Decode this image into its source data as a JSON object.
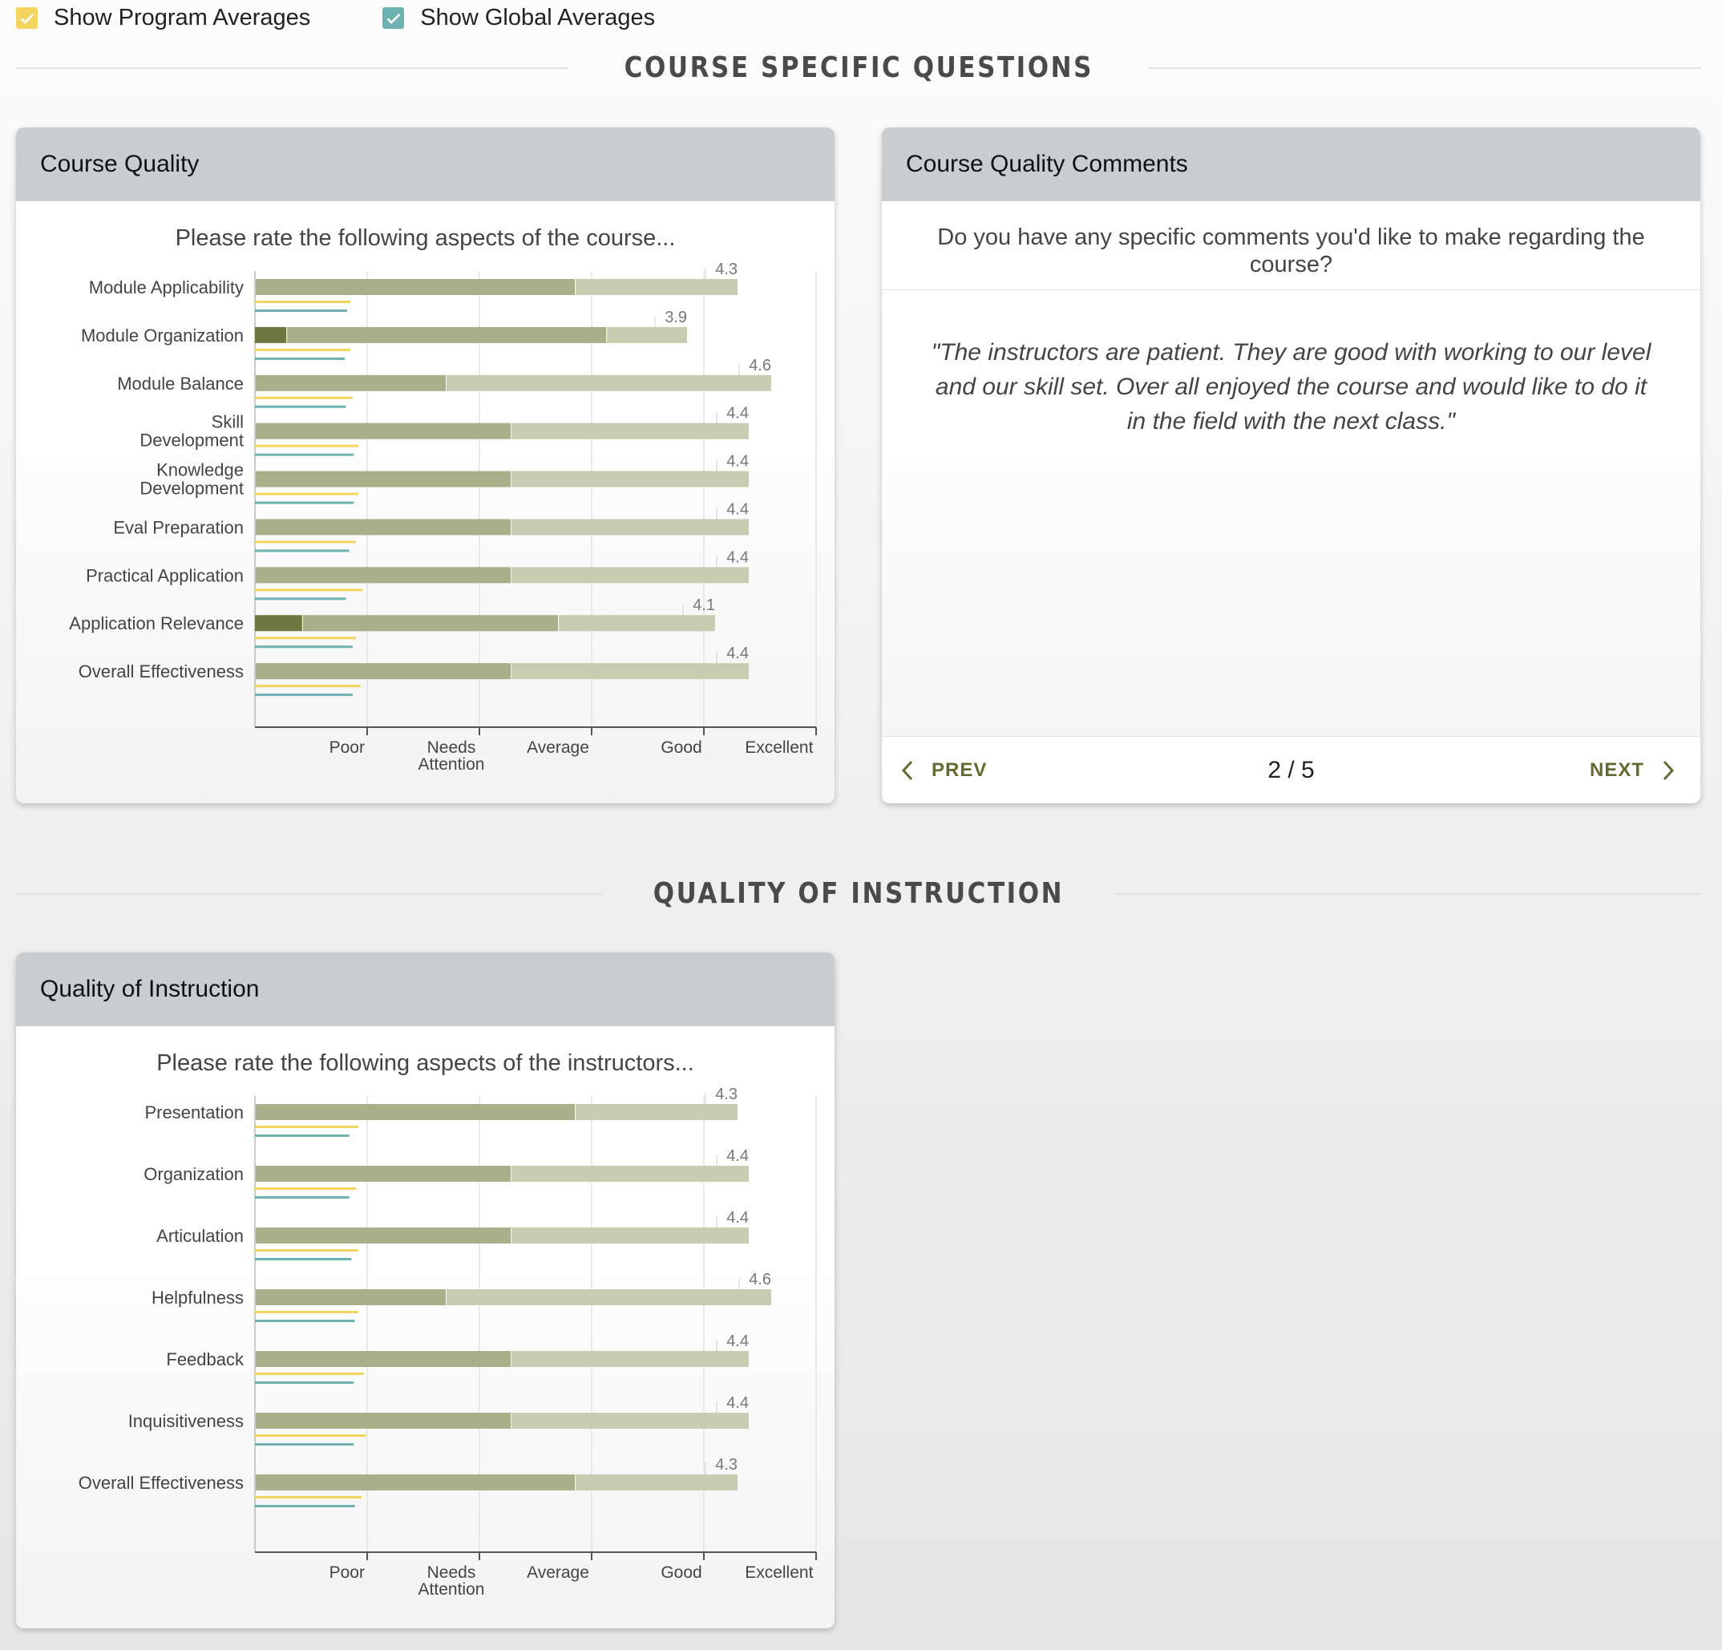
{
  "toggles": {
    "program": {
      "label": "Show Program Averages",
      "color": "#f3d45f",
      "checked": true
    },
    "global": {
      "label": "Show Global Averages",
      "color": "#6bb2b0",
      "checked": true
    }
  },
  "sections": {
    "course": "COURSE SPECIFIC QUESTIONS",
    "instruction": "QUALITY OF INSTRUCTION"
  },
  "colors": {
    "bar_dark": "#6f7741",
    "bar_mid": "#a9af89",
    "bar_light": "#c8ccb1",
    "program_line": "#f3d45f",
    "global_line": "#6bb2b0"
  },
  "axis_labels": [
    "Poor",
    "Needs Attention",
    "Average",
    "Good",
    "Excellent"
  ],
  "course_quality": {
    "title": "Course Quality",
    "subtitle": "Please rate the following aspects of the course...",
    "chart_data": {
      "type": "bar",
      "orientation": "horizontal-stacked",
      "xlim": [
        0,
        5
      ],
      "categories": [
        "Module Applicability",
        "Module Organization",
        "Module Balance",
        "Skill Development",
        "Knowledge Development",
        "Eval Preparation",
        "Practical Application",
        "Application Relevance",
        "Overall Effectiveness"
      ],
      "averages": [
        4.3,
        3.9,
        4.6,
        4.4,
        4.4,
        4.4,
        4.4,
        4.1,
        4.4
      ],
      "segments": [
        [
          0,
          2.85,
          1.45
        ],
        [
          0.28,
          2.85,
          0.72
        ],
        [
          0,
          1.7,
          2.9
        ],
        [
          0,
          2.28,
          2.12
        ],
        [
          0,
          2.28,
          2.12
        ],
        [
          0,
          2.28,
          2.12
        ],
        [
          0,
          2.28,
          2.12
        ],
        [
          0.42,
          2.28,
          1.4
        ],
        [
          0,
          2.28,
          2.12
        ]
      ],
      "program_avg": [
        0.85,
        0.85,
        0.87,
        0.92,
        0.92,
        0.9,
        0.96,
        0.9,
        0.94
      ],
      "global_avg": [
        0.82,
        0.8,
        0.81,
        0.88,
        0.88,
        0.84,
        0.81,
        0.87,
        0.87
      ]
    }
  },
  "comments": {
    "title": "Course Quality Comments",
    "question": "Do you have any specific comments you'd like to make regarding the course?",
    "text": "\"The instructors are patient. They are good with working to our level and our skill set. Over all enjoyed the course and would like to do it in the field with the next class.\"",
    "prev_label": "PREV",
    "next_label": "NEXT",
    "page": "2 / 5"
  },
  "quality_instruction": {
    "title": "Quality of Instruction",
    "subtitle": "Please rate the following aspects of the instructors...",
    "chart_data": {
      "type": "bar",
      "orientation": "horizontal-stacked",
      "xlim": [
        0,
        5
      ],
      "categories": [
        "Presentation",
        "Organization",
        "Articulation",
        "Helpfulness",
        "Feedback",
        "Inquisitiveness",
        "Overall Effectiveness"
      ],
      "averages": [
        4.3,
        4.4,
        4.4,
        4.6,
        4.4,
        4.4,
        4.3
      ],
      "segments": [
        [
          0,
          2.85,
          1.45
        ],
        [
          0,
          2.28,
          2.12
        ],
        [
          0,
          2.28,
          2.12
        ],
        [
          0,
          1.7,
          2.9
        ],
        [
          0,
          2.28,
          2.12
        ],
        [
          0,
          2.28,
          2.12
        ],
        [
          0,
          2.85,
          1.45
        ]
      ],
      "program_avg": [
        0.92,
        0.9,
        0.92,
        0.92,
        0.97,
        0.99,
        0.95
      ],
      "global_avg": [
        0.84,
        0.84,
        0.86,
        0.89,
        0.88,
        0.88,
        0.89
      ]
    }
  }
}
